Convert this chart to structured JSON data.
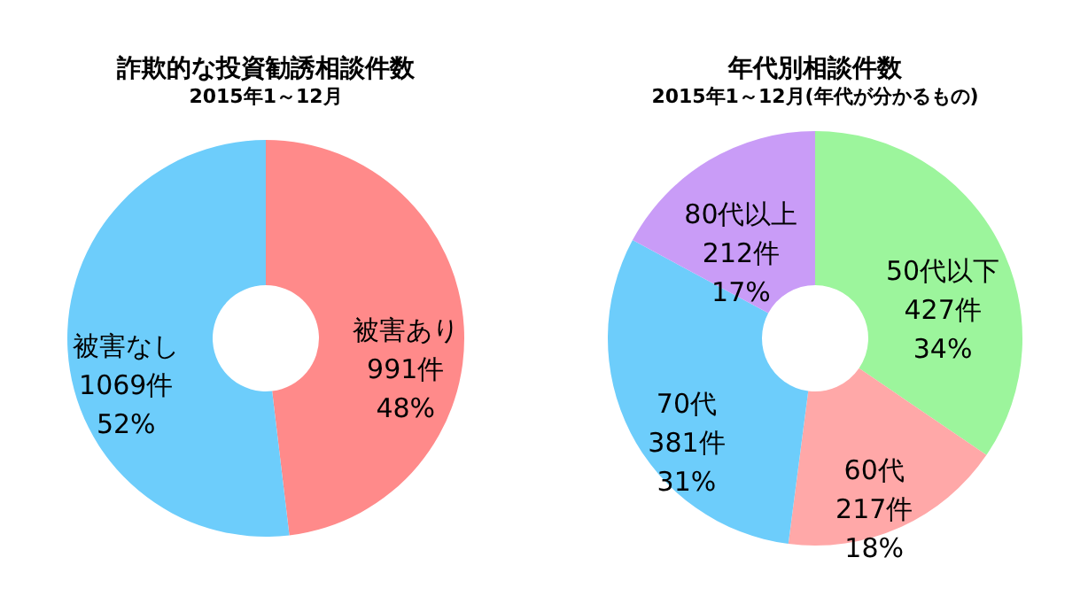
{
  "chart_data": [
    {
      "type": "donut",
      "title": "詐欺的な投資勧誘相談件数",
      "subtitle": "2015年1～12月",
      "categories": [
        "被害あり",
        "被害なし"
      ],
      "values": [
        991,
        1069
      ],
      "colors": [
        "#ff8a8a",
        "#6dcdfb"
      ],
      "value_labels": [
        "991件\n48%",
        "1069件\n52%"
      ],
      "legend": false
    },
    {
      "type": "donut",
      "title": "年代別相談件数",
      "subtitle": "2015年1～12月(年代が分かるもの)",
      "categories": [
        "50代以下",
        "60代",
        "70代",
        "80代以上"
      ],
      "values": [
        427,
        217,
        381,
        212
      ],
      "colors": [
        "#9cf59c",
        "#ffa8a8",
        "#6dcdfb",
        "#c99cf7"
      ],
      "value_labels": [
        "427件\n34%",
        "217件\n18%",
        "381件\n31%",
        "212件\n17%"
      ],
      "legend": false
    }
  ]
}
